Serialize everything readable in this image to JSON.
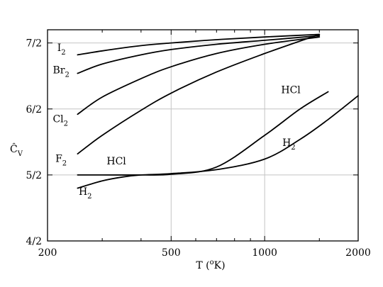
{
  "chart_data": {
    "type": "line",
    "xlabel": "T (°K)",
    "xlabel_parts": {
      "prefix": "T (",
      "sup": "o",
      "suffix": "K)"
    },
    "ylabel": "Ĉv",
    "ylabel_parts": {
      "main": "Ĉ",
      "sub": "V"
    },
    "x_scale": "log",
    "xlim": [
      200,
      2000
    ],
    "ylim": [
      2.0,
      3.6
    ],
    "grid": true,
    "x_ticks": [
      {
        "value": 200,
        "label": "200"
      },
      {
        "value": 500,
        "label": "500"
      },
      {
        "value": 1000,
        "label": "1000"
      },
      {
        "value": 2000,
        "label": "2000"
      }
    ],
    "x_grid": [
      500,
      1000
    ],
    "x_minor_ticks": [
      300,
      400,
      600,
      700,
      800,
      900,
      1500
    ],
    "y_ticks": [
      {
        "value": 2.0,
        "label": "4/2"
      },
      {
        "value": 2.5,
        "label": "5/2"
      },
      {
        "value": 3.0,
        "label": "6/2"
      },
      {
        "value": 3.5,
        "label": "7/2"
      }
    ],
    "y_grid": [
      2.5,
      3.0,
      3.5
    ],
    "series": [
      {
        "name": "I2",
        "label_main": "I",
        "label_sub": "2",
        "label_at": [
          215,
          3.44
        ],
        "x": [
          250,
          300,
          400,
          500,
          700,
          1000,
          1500
        ],
        "y": [
          3.41,
          3.44,
          3.48,
          3.5,
          3.525,
          3.545,
          3.565
        ]
      },
      {
        "name": "Br2",
        "label_main": "Br",
        "label_sub": "2",
        "label_at": [
          208,
          3.27
        ],
        "x": [
          250,
          300,
          400,
          500,
          700,
          1000,
          1500
        ],
        "y": [
          3.27,
          3.34,
          3.41,
          3.45,
          3.49,
          3.52,
          3.555
        ]
      },
      {
        "name": "Cl2",
        "label_main": "Cl",
        "label_sub": "2",
        "label_at": [
          208,
          2.9
        ],
        "x": [
          250,
          300,
          400,
          500,
          700,
          1000,
          1500
        ],
        "y": [
          2.96,
          3.09,
          3.23,
          3.32,
          3.42,
          3.49,
          3.545
        ]
      },
      {
        "name": "F2",
        "label_main": "F",
        "label_sub": "2",
        "label_at": [
          212,
          2.6
        ],
        "x": [
          250,
          300,
          400,
          500,
          700,
          1000,
          1500
        ],
        "y": [
          2.66,
          2.8,
          2.99,
          3.12,
          3.28,
          3.42,
          3.565
        ]
      },
      {
        "name": "HCl",
        "label_main": "HCl",
        "label_sub": "",
        "label_at": [
          310,
          2.58
        ],
        "label_at_2": [
          1130,
          3.12
        ],
        "x": [
          250,
          300,
          400,
          500,
          700,
          1000,
          1300,
          1600
        ],
        "y": [
          2.5,
          2.5,
          2.5,
          2.505,
          2.56,
          2.8,
          3.0,
          3.13
        ]
      },
      {
        "name": "H2",
        "label_main": "H",
        "label_sub": "2",
        "label_at": [
          252,
          2.35
        ],
        "label_at_2": [
          1140,
          2.72
        ],
        "x": [
          250,
          300,
          350,
          400,
          500,
          700,
          1000,
          1300,
          1600,
          2000
        ],
        "y": [
          2.4,
          2.455,
          2.485,
          2.5,
          2.51,
          2.54,
          2.62,
          2.77,
          2.92,
          3.1
        ]
      }
    ]
  }
}
